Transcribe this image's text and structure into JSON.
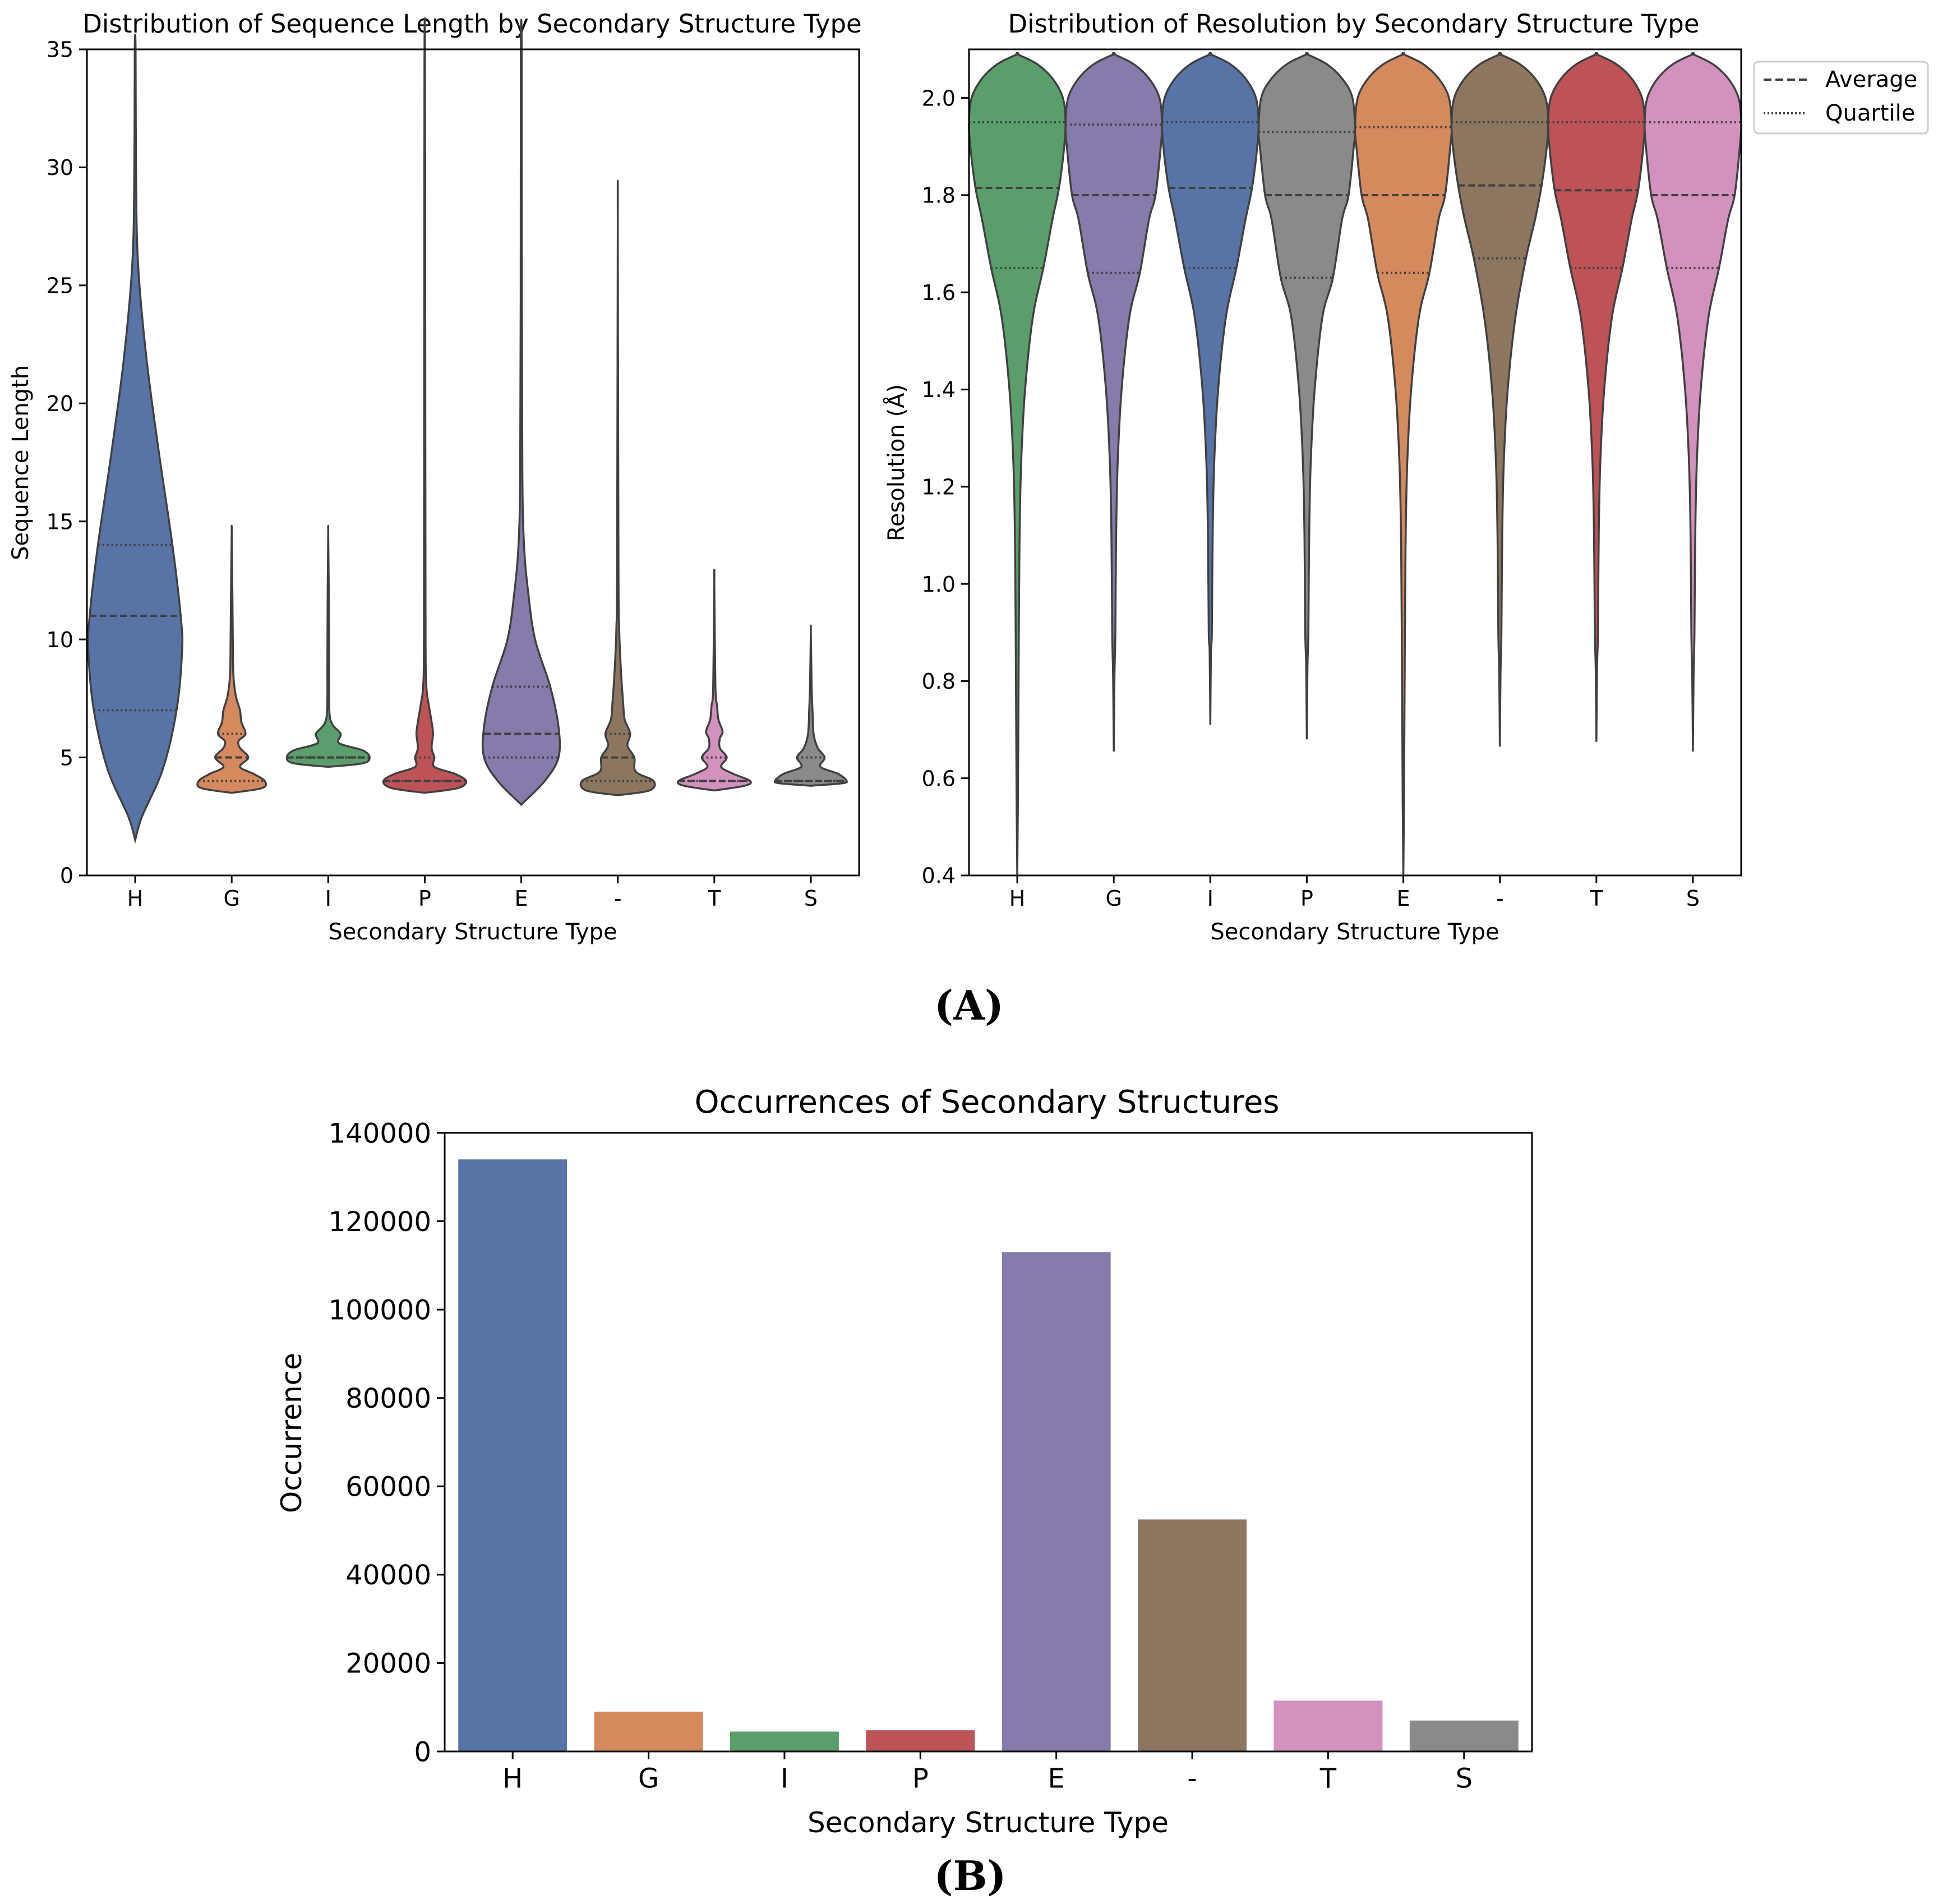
{
  "palette": {
    "H": "#5874a6",
    "G": "#d58a5e",
    "I": "#5a9e6c",
    "P": "#bd5257",
    "E": "#877bab",
    "-": "#8d7660",
    "T": "#d391bd",
    "S": "#8a8a8a",
    "outline": "#404040"
  },
  "panel_labels": {
    "a": "(A)",
    "b": "(B)"
  },
  "chart_data": [
    {
      "id": "seq_length",
      "type": "violin",
      "title": "Distribution of Sequence Length by Secondary Structure Type",
      "xlabel": "Secondary Structure Type",
      "ylabel": "Sequence Length",
      "ylim": [
        0,
        35
      ],
      "yticks": [
        0,
        5,
        10,
        15,
        20,
        25,
        30,
        35
      ],
      "categories": [
        "H",
        "G",
        "I",
        "P",
        "E",
        "-",
        "T",
        "S"
      ],
      "violins": [
        {
          "cat": "H",
          "color": "H",
          "q1": 7,
          "median": 11,
          "q3": 14,
          "profile": [
            [
              1.5,
              0.0
            ],
            [
              2.5,
              0.05
            ],
            [
              4.5,
              0.2
            ],
            [
              7,
              0.3
            ],
            [
              9.5,
              0.34
            ],
            [
              11,
              0.33
            ],
            [
              14,
              0.27
            ],
            [
              18,
              0.17
            ],
            [
              22,
              0.08
            ],
            [
              26,
              0.02
            ],
            [
              30,
              0.006
            ],
            [
              35,
              0.003
            ]
          ]
        },
        {
          "cat": "G",
          "color": "G",
          "q1": 4,
          "median": 5,
          "q3": 6,
          "profile": [
            [
              3.5,
              0.0
            ],
            [
              3.7,
              0.22
            ],
            [
              4.0,
              0.24
            ],
            [
              4.3,
              0.16
            ],
            [
              4.6,
              0.06
            ],
            [
              5.0,
              0.12
            ],
            [
              5.4,
              0.06
            ],
            [
              5.7,
              0.05
            ],
            [
              6.0,
              0.1
            ],
            [
              6.5,
              0.07
            ],
            [
              7.0,
              0.06
            ],
            [
              7.6,
              0.03
            ],
            [
              8.5,
              0.012
            ],
            [
              10,
              0.008
            ],
            [
              12,
              0.005
            ],
            [
              14.5,
              0.0
            ]
          ]
        },
        {
          "cat": "I",
          "color": "I",
          "q1": 5,
          "median": 5,
          "q3": 5,
          "profile": [
            [
              4.6,
              0.0
            ],
            [
              4.75,
              0.25
            ],
            [
              5.0,
              0.3
            ],
            [
              5.3,
              0.25
            ],
            [
              5.6,
              0.08
            ],
            [
              6.0,
              0.09
            ],
            [
              6.4,
              0.03
            ],
            [
              7.0,
              0.008
            ],
            [
              9,
              0.006
            ],
            [
              12,
              0.004
            ],
            [
              14.5,
              0.0
            ]
          ]
        },
        {
          "cat": "P",
          "color": "P",
          "q1": 4,
          "median": 4,
          "q3": 5,
          "profile": [
            [
              3.5,
              0.0
            ],
            [
              3.7,
              0.24
            ],
            [
              4.0,
              0.3
            ],
            [
              4.3,
              0.22
            ],
            [
              4.6,
              0.07
            ],
            [
              5.0,
              0.07
            ],
            [
              5.4,
              0.05
            ],
            [
              6.0,
              0.06
            ],
            [
              6.5,
              0.05
            ],
            [
              7.2,
              0.03
            ],
            [
              8,
              0.012
            ],
            [
              10,
              0.006
            ],
            [
              20,
              0.004
            ],
            [
              34.5,
              0.002
            ]
          ]
        },
        {
          "cat": "E",
          "color": "E",
          "q1": 5,
          "median": 6,
          "q3": 8,
          "profile": [
            [
              3.0,
              0.0
            ],
            [
              4.0,
              0.17
            ],
            [
              5.0,
              0.27
            ],
            [
              6.3,
              0.27
            ],
            [
              8.0,
              0.21
            ],
            [
              10,
              0.1
            ],
            [
              12,
              0.05
            ],
            [
              14,
              0.02
            ],
            [
              17,
              0.008
            ],
            [
              25,
              0.004
            ],
            [
              35,
              0.003
            ]
          ]
        },
        {
          "cat": "-",
          "color": "-",
          "q1": 4,
          "median": 5,
          "q3": 6,
          "profile": [
            [
              3.4,
              0.0
            ],
            [
              3.6,
              0.23
            ],
            [
              4.0,
              0.26
            ],
            [
              4.4,
              0.13
            ],
            [
              5.0,
              0.12
            ],
            [
              5.5,
              0.07
            ],
            [
              6.0,
              0.09
            ],
            [
              6.6,
              0.05
            ],
            [
              7.2,
              0.04
            ],
            [
              8,
              0.03
            ],
            [
              9,
              0.02
            ],
            [
              10.5,
              0.01
            ],
            [
              13,
              0.005
            ],
            [
              27.6,
              0.0
            ]
          ]
        },
        {
          "cat": "T",
          "color": "T",
          "q1": 4,
          "median": 4,
          "q3": 5,
          "profile": [
            [
              3.6,
              0.0
            ],
            [
              3.8,
              0.22
            ],
            [
              4.0,
              0.26
            ],
            [
              4.3,
              0.14
            ],
            [
              4.6,
              0.05
            ],
            [
              5.0,
              0.09
            ],
            [
              5.4,
              0.04
            ],
            [
              5.8,
              0.04
            ],
            [
              6.1,
              0.06
            ],
            [
              6.6,
              0.03
            ],
            [
              7.2,
              0.02
            ],
            [
              8,
              0.008
            ],
            [
              12.4,
              0.0
            ]
          ]
        },
        {
          "cat": "S",
          "color": "S",
          "q1": 4,
          "median": 4,
          "q3": 5,
          "profile": [
            [
              3.8,
              0.0
            ],
            [
              3.9,
              0.22
            ],
            [
              4.0,
              0.26
            ],
            [
              4.3,
              0.2
            ],
            [
              4.6,
              0.07
            ],
            [
              5.0,
              0.1
            ],
            [
              5.4,
              0.05
            ],
            [
              6.0,
              0.02
            ],
            [
              7,
              0.012
            ],
            [
              8,
              0.006
            ],
            [
              10.3,
              0.0
            ]
          ]
        }
      ]
    },
    {
      "id": "resolution",
      "type": "violin",
      "title": "Distribution of Resolution by Secondary Structure Type",
      "xlabel": "Secondary Structure Type",
      "ylabel": "Resolution (Å)",
      "ylim": [
        0.4,
        2.1
      ],
      "yticks": [
        0.4,
        0.6,
        0.8,
        1.0,
        1.2,
        1.4,
        1.6,
        1.8,
        2.0
      ],
      "categories": [
        "H",
        "G",
        "I",
        "P",
        "E",
        "-",
        "T",
        "S"
      ],
      "legend": [
        "Average",
        "Quartile"
      ],
      "violins": [
        {
          "cat": "H",
          "color": "I",
          "q1": 1.65,
          "median": 1.815,
          "q3": 1.95,
          "min": 0.4
        },
        {
          "cat": "G",
          "color": "E",
          "q1": 1.64,
          "median": 1.8,
          "q3": 1.945,
          "min": 0.655
        },
        {
          "cat": "I",
          "color": "H",
          "q1": 1.65,
          "median": 1.815,
          "q3": 1.95,
          "min": 0.71
        },
        {
          "cat": "P",
          "color": "S",
          "q1": 1.63,
          "median": 1.8,
          "q3": 1.93,
          "min": 0.68
        },
        {
          "cat": "E",
          "color": "G",
          "q1": 1.64,
          "median": 1.8,
          "q3": 1.94,
          "min": 0.4
        },
        {
          "cat": "-",
          "color": "-",
          "q1": 1.67,
          "median": 1.82,
          "q3": 1.95,
          "min": 0.665
        },
        {
          "cat": "T",
          "color": "P",
          "q1": 1.65,
          "median": 1.81,
          "q3": 1.95,
          "min": 0.675
        },
        {
          "cat": "S",
          "color": "T",
          "q1": 1.65,
          "median": 1.8,
          "q3": 1.95,
          "min": 0.655
        }
      ]
    },
    {
      "id": "occurrences",
      "type": "bar",
      "title": "Occurrences of Secondary Structures",
      "xlabel": "Secondary Structure Type",
      "ylabel": "Occurrence",
      "ylim": [
        0,
        140000
      ],
      "yticks": [
        0,
        20000,
        40000,
        60000,
        80000,
        100000,
        120000,
        140000
      ],
      "categories": [
        "H",
        "G",
        "I",
        "P",
        "E",
        "-",
        "T",
        "S"
      ],
      "values": [
        134000,
        9000,
        4500,
        4800,
        113000,
        52500,
        11500,
        7000
      ]
    }
  ]
}
